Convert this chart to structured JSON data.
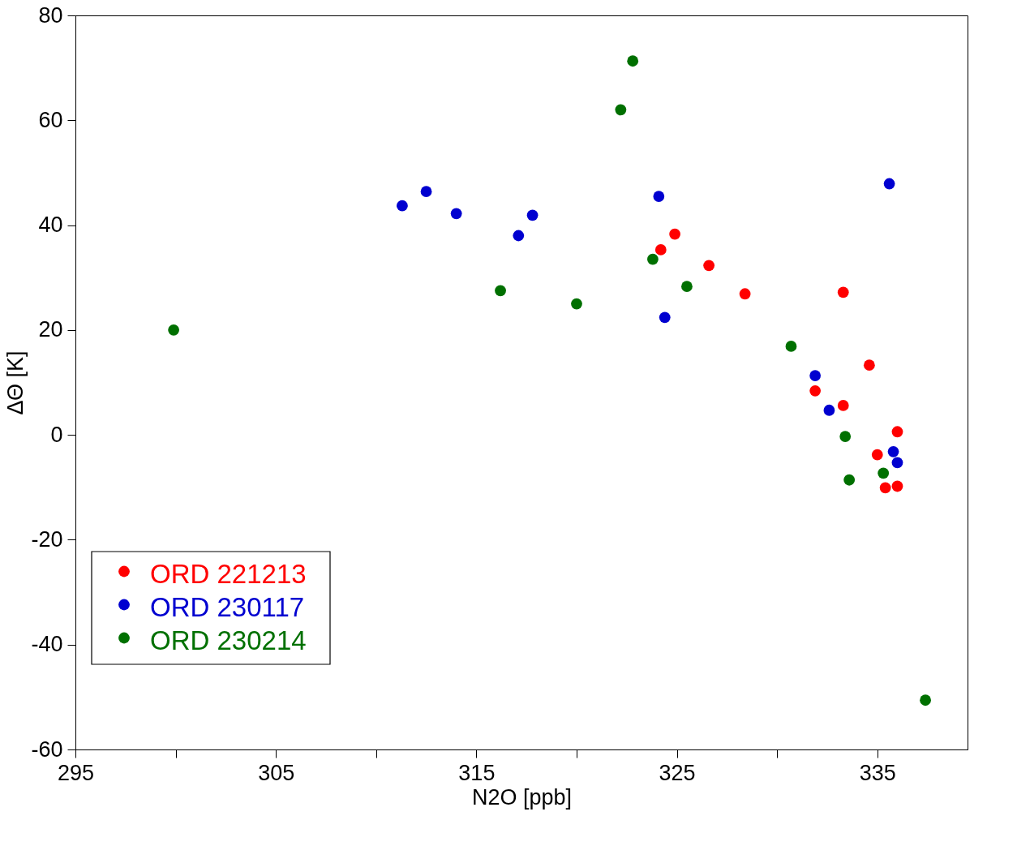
{
  "chart_data": {
    "type": "scatter",
    "xlabel": "N2O [ppb]",
    "ylabel": "ΔΘ [K]",
    "xlim": [
      295,
      339.5
    ],
    "ylim": [
      -60,
      80
    ],
    "xticks": [
      295,
      {
        "value": 300,
        "label": null
      },
      305,
      {
        "value": 310,
        "label": null
      },
      315,
      {
        "value": 320,
        "label": null
      },
      325,
      {
        "value": 330,
        "label": null
      },
      335
    ],
    "yticks": [
      -60,
      -40,
      -20,
      0,
      20,
      40,
      60,
      80
    ],
    "grid": false,
    "legend": "bottom left",
    "marker": "circle",
    "series": [
      {
        "name": "ORD 221213",
        "color": "#ff0000",
        "x": [
          324.2,
          324.9,
          326.6,
          328.4,
          333.3,
          334.6,
          331.9,
          333.3,
          336.0,
          335.0,
          335.4,
          336.0
        ],
        "values": [
          35.3,
          38.3,
          32.3,
          26.9,
          27.2,
          13.3,
          8.4,
          5.6,
          0.6,
          -3.8,
          -10.1,
          -9.8
        ]
      },
      {
        "name": "ORD 230117",
        "color": "#0000d0",
        "x": [
          311.3,
          312.5,
          314.0,
          317.1,
          317.8,
          324.1,
          324.4,
          335.6,
          331.9,
          332.6,
          335.8,
          336.0
        ],
        "values": [
          43.7,
          46.4,
          42.2,
          38.0,
          41.9,
          45.5,
          22.4,
          47.9,
          11.3,
          4.7,
          -3.2,
          -5.3
        ]
      },
      {
        "name": "ORD 230214",
        "color": "#007000",
        "x": [
          299.9,
          316.2,
          320.0,
          322.2,
          322.8,
          323.8,
          325.5,
          330.7,
          333.4,
          333.6,
          335.3,
          337.4
        ],
        "values": [
          20.0,
          27.5,
          25.0,
          62.0,
          71.3,
          33.5,
          28.3,
          16.9,
          -0.3,
          -8.6,
          -7.3,
          -50.6
        ]
      }
    ]
  }
}
